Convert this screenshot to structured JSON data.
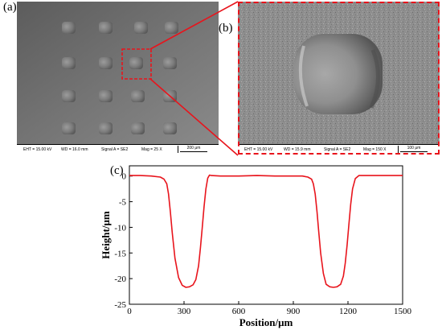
{
  "figure": {
    "panel_a": {
      "label": "(a)",
      "databar": {
        "eht": "EHT = 15.00 kV",
        "wd": "WD = 16.0 mm",
        "signal": "Signal A = SE2",
        "mag": "Mag =   25 X",
        "scale": "200 μm"
      }
    },
    "panel_b": {
      "label": "(b)",
      "databar": {
        "eht": "EHT = 15.00 kV",
        "wd": "WD = 15.9 mm",
        "signal": "Signal A = SE2",
        "mag": "Mag =  150 X",
        "scale": "100 μm"
      }
    },
    "panel_c": {
      "label": "(c)"
    },
    "colors": {
      "highlight": "#e8141c",
      "profile": "#e8141c"
    }
  },
  "chart_data": {
    "type": "line",
    "xlabel": "Position/μm",
    "ylabel": "Height/μm",
    "xlim": [
      0,
      1500
    ],
    "ylim": [
      -25,
      2
    ],
    "xticks": [
      "0",
      "300",
      "600",
      "900",
      "1200",
      "1500"
    ],
    "yticks": [
      "0",
      "-5",
      "-10",
      "-15",
      "-20",
      "-25"
    ],
    "series": [
      {
        "x": [
          0,
          60,
          120,
          170,
          190,
          205,
          215,
          225,
          235,
          250,
          270,
          290,
          310,
          330,
          350,
          365,
          380,
          390,
          400,
          410,
          420,
          430,
          440,
          450,
          500,
          600,
          700,
          800,
          900,
          950,
          980,
          1000,
          1010,
          1020,
          1030,
          1040,
          1050,
          1065,
          1080,
          1100,
          1120,
          1140,
          1160,
          1175,
          1185,
          1195,
          1205,
          1215,
          1225,
          1240,
          1260,
          1300,
          1400,
          1500
        ],
        "y": [
          0.1,
          0.1,
          0.0,
          -0.2,
          -0.6,
          -1.5,
          -3.5,
          -7,
          -11,
          -16,
          -19.8,
          -21.3,
          -21.7,
          -21.6,
          -21.2,
          -20.2,
          -17.5,
          -14,
          -10,
          -6,
          -2.5,
          -0.4,
          0.2,
          0.1,
          0.0,
          0.0,
          0.1,
          0.0,
          0.0,
          0.0,
          -0.2,
          -0.6,
          -1.5,
          -3.5,
          -7,
          -11,
          -15,
          -19,
          -21.1,
          -21.6,
          -21.7,
          -21.6,
          -21.1,
          -19.5,
          -17,
          -13.5,
          -9.5,
          -5.5,
          -2.5,
          -0.5,
          0.1,
          0.1,
          0.1,
          0.1
        ]
      }
    ]
  }
}
